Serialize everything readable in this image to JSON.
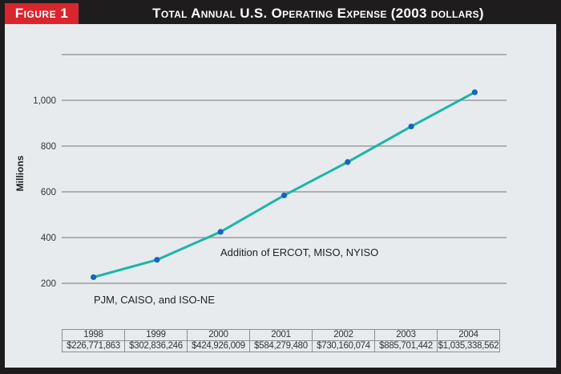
{
  "header": {
    "figure_label": "Figure 1",
    "title": "Total Annual U.S. Operating Expense (2003 dollars)"
  },
  "colors": {
    "header_bg": "#1e1c1d",
    "figure_label_bg": "#d9262e",
    "panel_bg": "#e7ebee",
    "line": "#1bb5a6",
    "point": "#1565c0",
    "grid": "#9a9c9e"
  },
  "chart_data": {
    "type": "line",
    "title": "Total Annual U.S. Operating Expense (2003 dollars)",
    "xlabel": "",
    "ylabel": "Millions",
    "ylim": [
      200,
      1200
    ],
    "yticks": [
      200,
      400,
      600,
      800,
      1000,
      1200
    ],
    "ytick_labels": [
      "200",
      "400",
      "600",
      "800",
      "1,000",
      ""
    ],
    "grid": true,
    "categories": [
      "1998",
      "1999",
      "2000",
      "2001",
      "2002",
      "2003",
      "2004"
    ],
    "series": [
      {
        "name": "Total Annual U.S. Operating Expense",
        "values": [
          226.771863,
          302.836246,
          424.926009,
          584.27948,
          730.160074,
          885.701442,
          1035.338562
        ]
      }
    ],
    "annotations": [
      {
        "text": "PJM, CAISO, and ISO-NE",
        "near": "1998"
      },
      {
        "text": "Addition of ERCOT, MISO, NYISO",
        "near": "2000"
      }
    ],
    "table": {
      "years": [
        "1998",
        "1999",
        "2000",
        "2001",
        "2002",
        "2003",
        "2004"
      ],
      "values": [
        "$226,771,863",
        "$302,836,246",
        "$424,926,009",
        "$584,279,480",
        "$730,160,074",
        "$885,701,442",
        "$1,035,338,562"
      ]
    }
  }
}
